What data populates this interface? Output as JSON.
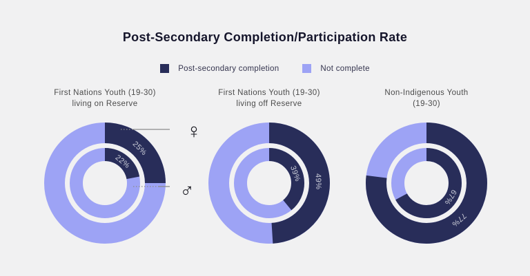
{
  "chart_data": {
    "type": "donut",
    "title": "Post-Secondary Completion/Participation Rate",
    "legend": [
      {
        "label": "Post-secondary completion",
        "color": "#282d59"
      },
      {
        "label": "Not complete",
        "color": "#9da3f5"
      }
    ],
    "colors": {
      "completion": "#282d59",
      "not_complete": "#9da3f5",
      "background": "#f1f1f2",
      "annotation_line": "#8b8b8b"
    },
    "ring_meaning": {
      "outer": "female",
      "inner": "male"
    },
    "annotations": {
      "female_symbol": "♀",
      "male_symbol": "♂"
    },
    "charts": [
      {
        "title_lines": [
          "First Nations Youth (19-30)",
          "living on Reserve"
        ],
        "series": [
          {
            "ring": "outer",
            "gender": "female",
            "completion_pct": 25,
            "label": "25%"
          },
          {
            "ring": "inner",
            "gender": "male",
            "completion_pct": 22,
            "label": "22%"
          }
        ]
      },
      {
        "title_lines": [
          "First Nations Youth (19-30)",
          "living off Reserve"
        ],
        "series": [
          {
            "ring": "outer",
            "gender": "female",
            "completion_pct": 49,
            "label": "49%"
          },
          {
            "ring": "inner",
            "gender": "male",
            "completion_pct": 39,
            "label": "39%"
          }
        ]
      },
      {
        "title_lines": [
          "Non-Indigenous Youth",
          "(19-30)"
        ],
        "series": [
          {
            "ring": "outer",
            "gender": "female",
            "completion_pct": 77,
            "label": "77%"
          },
          {
            "ring": "inner",
            "gender": "male",
            "completion_pct": 67,
            "label": "67%"
          }
        ]
      }
    ]
  }
}
